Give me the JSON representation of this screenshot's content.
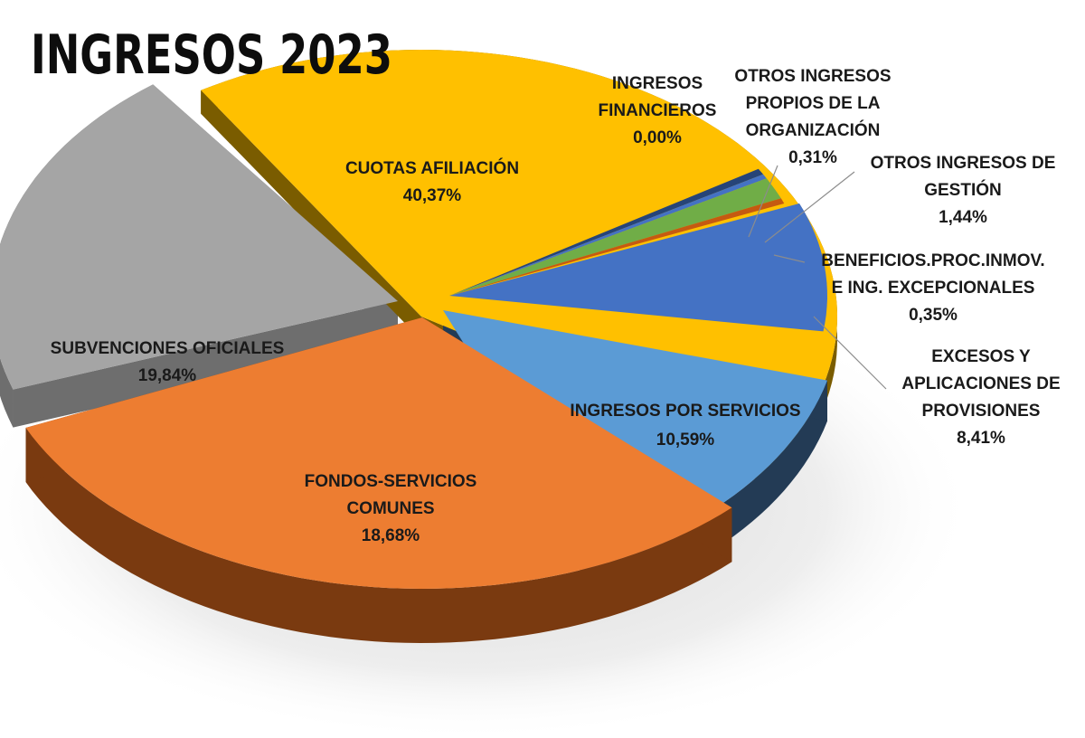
{
  "title": "INGRESOS 2023",
  "chart_data": {
    "type": "pie",
    "title": "INGRESOS 2023",
    "unit": "%",
    "slices": [
      {
        "key": "cuotas",
        "label_lines": [
          "CUOTAS AFILIACIÓN"
        ],
        "value_text": "40,37%",
        "value": 40.37,
        "color": "#FFC000"
      },
      {
        "key": "financieros",
        "label_lines": [
          "INGRESOS",
          "FINANCIEROS"
        ],
        "value_text": "0,00%",
        "value": 0.0,
        "color": "#264478"
      },
      {
        "key": "otros_propios",
        "label_lines": [
          "OTROS INGRESOS",
          "PROPIOS DE LA",
          "ORGANIZACIÓN"
        ],
        "value_text": "0,31%",
        "value": 0.31,
        "color": "#4472C4"
      },
      {
        "key": "otros_gestion",
        "label_lines": [
          "OTROS INGRESOS DE",
          "GESTIÓN"
        ],
        "value_text": "1,44%",
        "value": 1.44,
        "color": "#70AD47"
      },
      {
        "key": "beneficios",
        "label_lines": [
          "BENEFICIOS.PROC.INMOV.",
          "E ING. EXCEPCIONALES"
        ],
        "value_text": "0,35%",
        "value": 0.35,
        "color": "#C55A11"
      },
      {
        "key": "excesos",
        "label_lines": [
          "EXCESOS Y",
          "APLICACIONES DE",
          "PROVISIONES"
        ],
        "value_text": "8,41%",
        "value": 8.41,
        "color": "#4472C4"
      },
      {
        "key": "servicios",
        "label_lines": [
          "INGRESOS POR SERVICIOS"
        ],
        "value_text": "10,59%",
        "value": 10.59,
        "color": "#5B9BD5"
      },
      {
        "key": "fondos",
        "label_lines": [
          "FONDOS-SERVICIOS",
          "COMUNES"
        ],
        "value_text": "18,68%",
        "value": 18.68,
        "color": "#ED7D31"
      },
      {
        "key": "subvenciones",
        "label_lines": [
          "SUBVENCIONES OFICIALES"
        ],
        "value_text": "19,84%",
        "value": 19.84,
        "color": "#A5A5A5"
      }
    ]
  }
}
